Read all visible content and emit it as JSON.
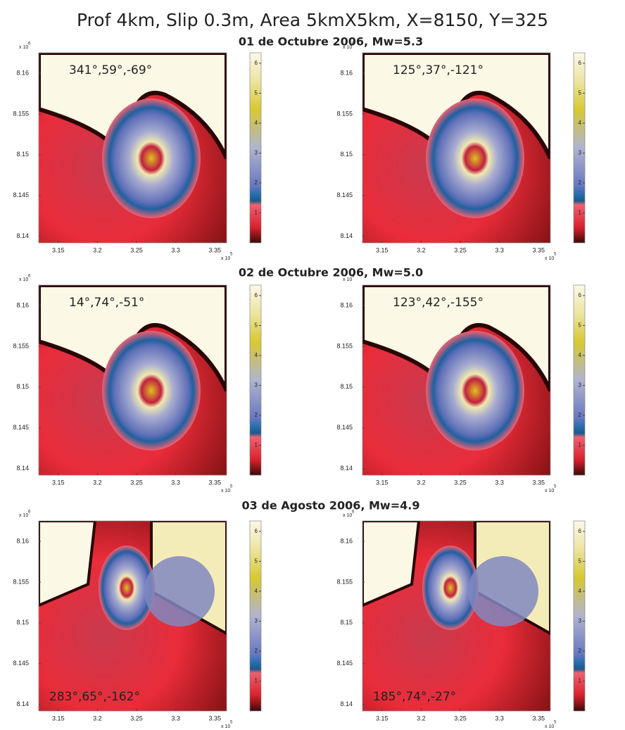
{
  "title": "Prof 4km, Slip 0.3m, Area 5kmX5km, X=8150, Y=325",
  "row_titles": [
    "01 de Octubre 2006, Mw=5.3",
    "02 de Octubre 2006, Mw=5.0",
    "03 de Agosto 2006, Mw=4.9"
  ],
  "chart_data": [
    {
      "type": "heatmap",
      "annotation": "341°,59°,-69°",
      "x_multiplier": "x 10",
      "x_exponent": "5",
      "y_multiplier": "x 10",
      "y_exponent": "6",
      "xlim": [
        3.125,
        3.365
      ],
      "xticks": [
        3.15,
        3.2,
        3.25,
        3.3,
        3.35
      ],
      "ylim": [
        8.1392,
        8.1625
      ],
      "yticks": [
        8.14,
        8.145,
        8.15,
        8.155,
        8.16
      ],
      "clim": [
        0,
        6.35
      ],
      "cticks": [
        1,
        2,
        3,
        4,
        5,
        6
      ]
    },
    {
      "type": "heatmap",
      "annotation": "125°,37°,-121°",
      "x_multiplier": "x 10",
      "x_exponent": "5",
      "y_multiplier": "x 10",
      "y_exponent": "6",
      "xlim": [
        3.125,
        3.365
      ],
      "xticks": [
        3.15,
        3.2,
        3.25,
        3.3,
        3.35
      ],
      "ylim": [
        8.1392,
        8.1625
      ],
      "yticks": [
        8.14,
        8.145,
        8.15,
        8.155,
        8.16
      ],
      "clim": [
        0,
        6.35
      ],
      "cticks": [
        1,
        2,
        3,
        4,
        5,
        6
      ]
    },
    {
      "type": "heatmap",
      "annotation": "14°,74°,-51°",
      "x_multiplier": "x 10",
      "x_exponent": "5",
      "y_multiplier": "x 10",
      "y_exponent": "6",
      "xlim": [
        3.125,
        3.365
      ],
      "xticks": [
        3.15,
        3.2,
        3.25,
        3.3,
        3.35
      ],
      "ylim": [
        8.1392,
        8.1625
      ],
      "yticks": [
        8.14,
        8.145,
        8.15,
        8.155,
        8.16
      ],
      "clim": [
        0,
        6.35
      ],
      "cticks": [
        1,
        2,
        3,
        4,
        5,
        6
      ]
    },
    {
      "type": "heatmap",
      "annotation": "123°,42°,-155°",
      "x_multiplier": "x 10",
      "x_exponent": "5",
      "y_multiplier": "x 10",
      "y_exponent": "6",
      "xlim": [
        3.125,
        3.365
      ],
      "xticks": [
        3.15,
        3.2,
        3.25,
        3.3,
        3.35
      ],
      "ylim": [
        8.1392,
        8.1625
      ],
      "yticks": [
        8.14,
        8.145,
        8.15,
        8.155,
        8.16
      ],
      "clim": [
        0,
        6.35
      ],
      "cticks": [
        1,
        2,
        3,
        4,
        5,
        6
      ]
    },
    {
      "type": "heatmap",
      "annotation": "283°,65°,-162°",
      "x_multiplier": "x 10",
      "x_exponent": "5",
      "y_multiplier": "x 10",
      "y_exponent": "6",
      "xlim": [
        3.125,
        3.365
      ],
      "xticks": [
        3.15,
        3.2,
        3.25,
        3.3,
        3.35
      ],
      "ylim": [
        8.1392,
        8.1625
      ],
      "yticks": [
        8.14,
        8.145,
        8.15,
        8.155,
        8.16
      ],
      "clim": [
        0,
        6.35
      ],
      "cticks": [
        1,
        2,
        3,
        4,
        5,
        6
      ]
    },
    {
      "type": "heatmap",
      "annotation": "185°,74°,-27°",
      "x_multiplier": "x 10",
      "x_exponent": "5",
      "y_multiplier": "x 10",
      "y_exponent": "6",
      "xlim": [
        3.125,
        3.365
      ],
      "xticks": [
        3.15,
        3.2,
        3.25,
        3.3,
        3.35
      ],
      "ylim": [
        8.1392,
        8.1625
      ],
      "yticks": [
        8.14,
        8.145,
        8.15,
        8.155,
        8.16
      ],
      "clim": [
        0,
        6.35
      ],
      "cticks": [
        1,
        2,
        3,
        4,
        5,
        6
      ]
    }
  ]
}
